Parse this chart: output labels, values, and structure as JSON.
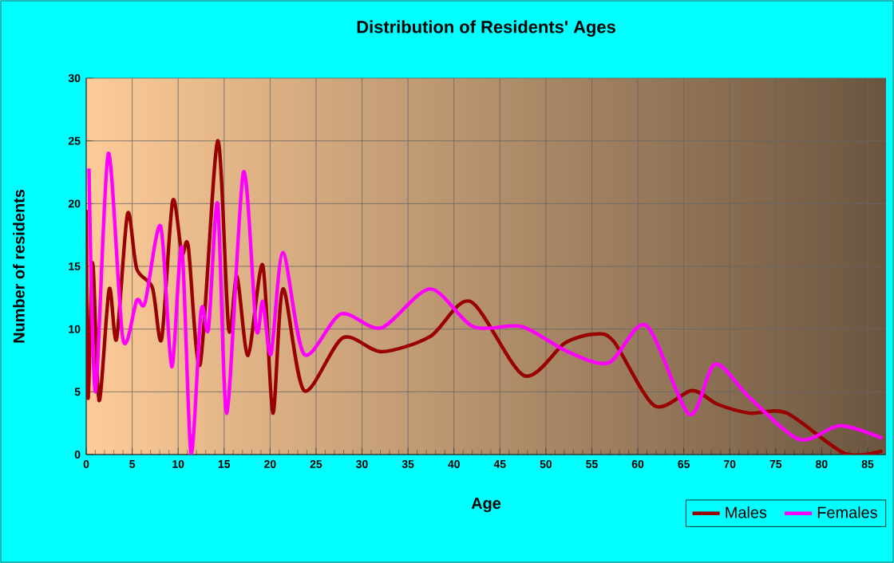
{
  "chart_data": {
    "type": "line",
    "title": "Distribution of Residents' Ages",
    "xlabel": "Age",
    "ylabel": "Number of residents",
    "xlim": [
      0,
      87
    ],
    "ylim": [
      0,
      30
    ],
    "xticks": [
      0,
      5,
      10,
      15,
      20,
      25,
      30,
      35,
      40,
      45,
      50,
      55,
      60,
      65,
      70,
      75,
      80,
      85
    ],
    "yticks": [
      0,
      5,
      10,
      15,
      20,
      25,
      30
    ],
    "grid": true,
    "legend": "bottom right",
    "marker": "none",
    "line_style": "solid",
    "series": [
      {
        "name": "Males",
        "color": "#990000",
        "x": [
          0,
          0.2,
          0.7,
          1.4,
          2.5,
          3.3,
          4.5,
          5.5,
          7.2,
          8.2,
          9.4,
          10.4,
          11.1,
          12.4,
          14.3,
          15.5,
          16.4,
          17.6,
          19.2,
          20.3,
          21.4,
          23.7,
          27.9,
          32.1,
          37.4,
          41.8,
          47.6,
          52.1,
          55.3,
          57.4,
          61.8,
          65.9,
          68.7,
          72.2,
          76.2,
          82.5,
          86.6
        ],
        "values": [
          19.5,
          4.5,
          15.3,
          4.3,
          13.2,
          9.2,
          19.2,
          14.8,
          13.3,
          9.2,
          20.2,
          16,
          16.6,
          7.2,
          25,
          10,
          14.2,
          7.9,
          15.1,
          3.3,
          13.2,
          5.1,
          9.3,
          8.2,
          9.4,
          12.2,
          6.3,
          8.9,
          9.6,
          9.0,
          3.9,
          5.1,
          4.0,
          3.3,
          3.3,
          0.1,
          0.3
        ]
      },
      {
        "name": "Females",
        "color": "#ff00ff",
        "x": [
          0.3,
          1.0,
          2.4,
          4.0,
          5.5,
          6.4,
          8.1,
          9.3,
          10.4,
          11.4,
          12.5,
          13.3,
          14.3,
          15.3,
          17.1,
          18.5,
          19.2,
          20.1,
          21.4,
          23.7,
          27.7,
          32.1,
          37.4,
          42.1,
          47.4,
          52.1,
          56.8,
          60.9,
          65.6,
          68.4,
          72.2,
          77.6,
          82,
          86.6
        ],
        "values": [
          22.8,
          5,
          24,
          9.2,
          12.3,
          12.1,
          18.2,
          7,
          16.5,
          0.1,
          11.5,
          10,
          20,
          3.3,
          22.5,
          10,
          12.2,
          8,
          16.1,
          8,
          11.2,
          10.1,
          13.2,
          10.2,
          10.2,
          8.3,
          7.3,
          10.3,
          3.2,
          7.2,
          4.5,
          1.2,
          2.3,
          1.3
        ]
      }
    ]
  }
}
